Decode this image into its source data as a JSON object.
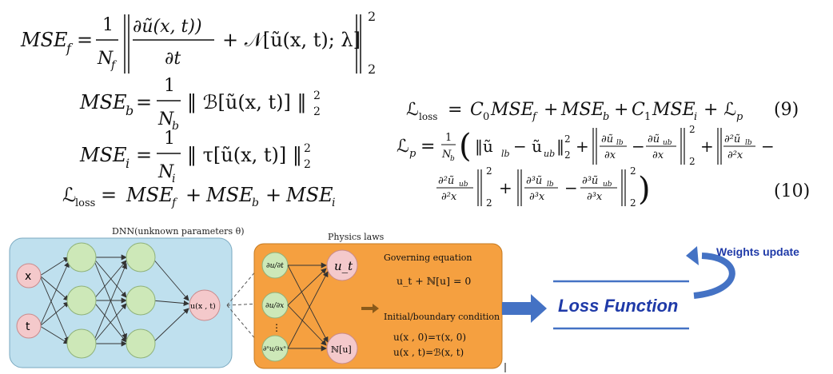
{
  "equations_left": {
    "mse_f": "MSE_f = (1/N_f) ‖ ∂ũ(x,t)/∂t + 𝒩[ũ(x,t); λ] ‖₂²",
    "mse_b": "MSE_b = (1/N_b) ‖ ℬ[ũ(x,t)] ‖₂²",
    "mse_i": "MSE_i = (1/N_i) ‖ τ[ũ(x,t)] ‖₂²",
    "loss": "ℒ_loss = MSE_f + MSE_b + MSE_i"
  },
  "equations_right": {
    "loss": "ℒ_loss = C₀MSE_f + MSE_b + C₁MSE_i + ℒ_p",
    "loss_number": "(9)",
    "lp_line1": "ℒ_p = (1/N_b)( ‖ũ_lb − ũ_ub‖₂² + ‖∂ũ_lb/∂x − ∂ũ_ub/∂x‖₂² + ‖∂²ũ_lb/∂²x −",
    "lp_line2": "∂²ũ_ub/∂²x ‖₂² + ‖∂³ũ_lb/∂³x − ∂³ũ_ub/∂³x‖₂² )",
    "lp_number": "(10)"
  },
  "dnn": {
    "title": "DNN(unknown parameters θ)",
    "inputs": [
      "x",
      "t"
    ],
    "output": "u(x , t)"
  },
  "physics": {
    "title": "Physics laws",
    "derivatives": [
      "∂u/∂t",
      "∂u/∂x",
      "∂ⁿu/∂xⁿ"
    ],
    "ellipsis": "⋮",
    "ut": "u_t",
    "nu": "ℕ[u]",
    "governing_title": "Governing equation",
    "governing_eq": "u_t + ℕ[u] = 0",
    "ibc_title": "Initial/boundary condition",
    "ibc_eq1": "u(x , 0)=τ(x, 0)",
    "ibc_eq2": "u(x , t)=ℬ(x, t)"
  },
  "loss_box": {
    "label": "Loss Function"
  },
  "weights_update": {
    "label": "Weights update"
  },
  "colors": {
    "dnn_bg": "#bfe0ee",
    "node_green": "#cde8b8",
    "node_pink": "#f4c9cb",
    "physics_bg": "#f5a040",
    "arrow_blue": "#4472c4",
    "loss_text": "#1f3aa8"
  }
}
